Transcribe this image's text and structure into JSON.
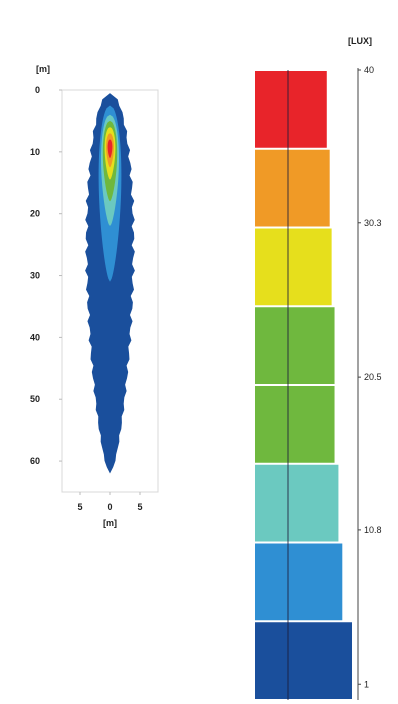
{
  "chart_data": [
    {
      "type": "heatmap",
      "title": "",
      "xlabel": "[m]",
      "ylabel": "[m]",
      "xlim": [
        -8,
        8
      ],
      "ylim": [
        0,
        65
      ],
      "x_ticks": [
        -5,
        0,
        5
      ],
      "x_tick_labels": [
        "5",
        "0",
        "5"
      ],
      "y_ticks": [
        0,
        10,
        20,
        30,
        40,
        50,
        60
      ],
      "grid": false,
      "contours": [
        {
          "level": 1,
          "color": "#1a4f9c",
          "y_top": 0.5,
          "y_bottom": 62,
          "half_width_max": 4.2
        },
        {
          "level": 2,
          "color": "#2f8fd3",
          "y_top": 2.5,
          "y_bottom": 31,
          "half_width_max": 1.9
        },
        {
          "level": 3,
          "color": "#6bc9c0",
          "y_top": 4,
          "y_bottom": 22,
          "half_width_max": 1.5
        },
        {
          "level": 4,
          "color": "#6fb83e",
          "y_top": 5,
          "y_bottom": 18,
          "half_width_max": 1.2
        },
        {
          "level": 5,
          "color": "#e6df1c",
          "y_top": 6,
          "y_bottom": 14.5,
          "half_width_max": 0.9
        },
        {
          "level": 6,
          "color": "#f09a26",
          "y_top": 7,
          "y_bottom": 12.5,
          "half_width_max": 0.65
        },
        {
          "level": 7,
          "color": "#e8242a",
          "y_top": 8,
          "y_bottom": 11,
          "half_width_max": 0.4
        }
      ]
    },
    {
      "type": "bar",
      "title": "",
      "unit_label": "[LUX]",
      "ylim": [
        0,
        40
      ],
      "tick_values": [
        40,
        30.3,
        20.5,
        10.8,
        1
      ],
      "tick_labels": [
        "40",
        "30.3",
        "20.5",
        "10.8",
        "1"
      ],
      "legend_bins": [
        {
          "color": "#1a4f9c",
          "from": 1,
          "to": 5.9,
          "width_frac": 1.0
        },
        {
          "color": "#2f8fd3",
          "from": 5.9,
          "to": 10.8,
          "width_frac": 0.9
        },
        {
          "color": "#6bc9c0",
          "from": 10.8,
          "to": 15.6,
          "width_frac": 0.86
        },
        {
          "color": "#6fb83e",
          "from": 15.6,
          "to": 20.5,
          "width_frac": 0.82
        },
        {
          "color": "#6fb83e",
          "from": 20.5,
          "to": 25.4,
          "width_frac": 0.82
        },
        {
          "color": "#e6df1c",
          "from": 25.4,
          "to": 30.3,
          "width_frac": 0.79
        },
        {
          "color": "#f09a26",
          "from": 30.3,
          "to": 35.1,
          "width_frac": 0.77
        },
        {
          "color": "#e8242a",
          "from": 35.1,
          "to": 40,
          "width_frac": 0.74
        }
      ]
    }
  ]
}
